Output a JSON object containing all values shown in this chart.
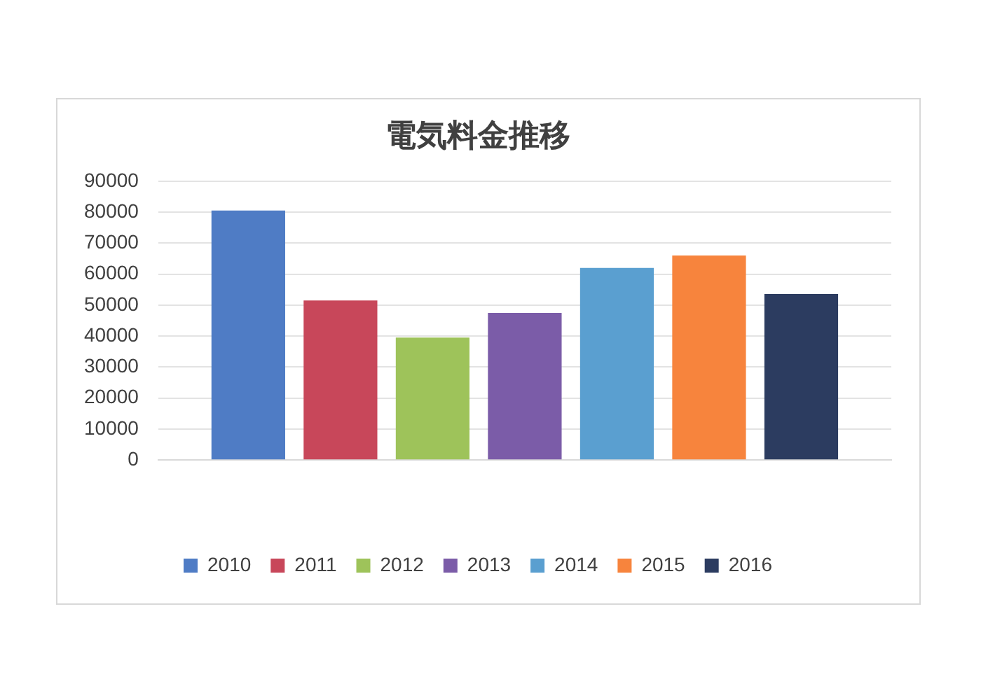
{
  "chart_data": {
    "type": "bar",
    "title": "電気料金推移",
    "categories": [
      null
    ],
    "series": [
      {
        "name": "2010",
        "color": "#4f7cc5",
        "values": [
          80500
        ]
      },
      {
        "name": "2011",
        "color": "#c8475a",
        "values": [
          51500
        ]
      },
      {
        "name": "2012",
        "color": "#9ec35a",
        "values": [
          39500
        ]
      },
      {
        "name": "2013",
        "color": "#7b5ca8",
        "values": [
          47500
        ]
      },
      {
        "name": "2014",
        "color": "#5a9fd0",
        "values": [
          62000
        ]
      },
      {
        "name": "2015",
        "color": "#f7843d",
        "values": [
          66000
        ]
      },
      {
        "name": "2016",
        "color": "#2c3c60",
        "values": [
          53600
        ]
      }
    ],
    "ylim": [
      0,
      90000
    ],
    "yticks": [
      0,
      10000,
      20000,
      30000,
      40000,
      50000,
      60000,
      70000,
      80000,
      90000
    ],
    "grid": "y",
    "legend": "bottom"
  }
}
